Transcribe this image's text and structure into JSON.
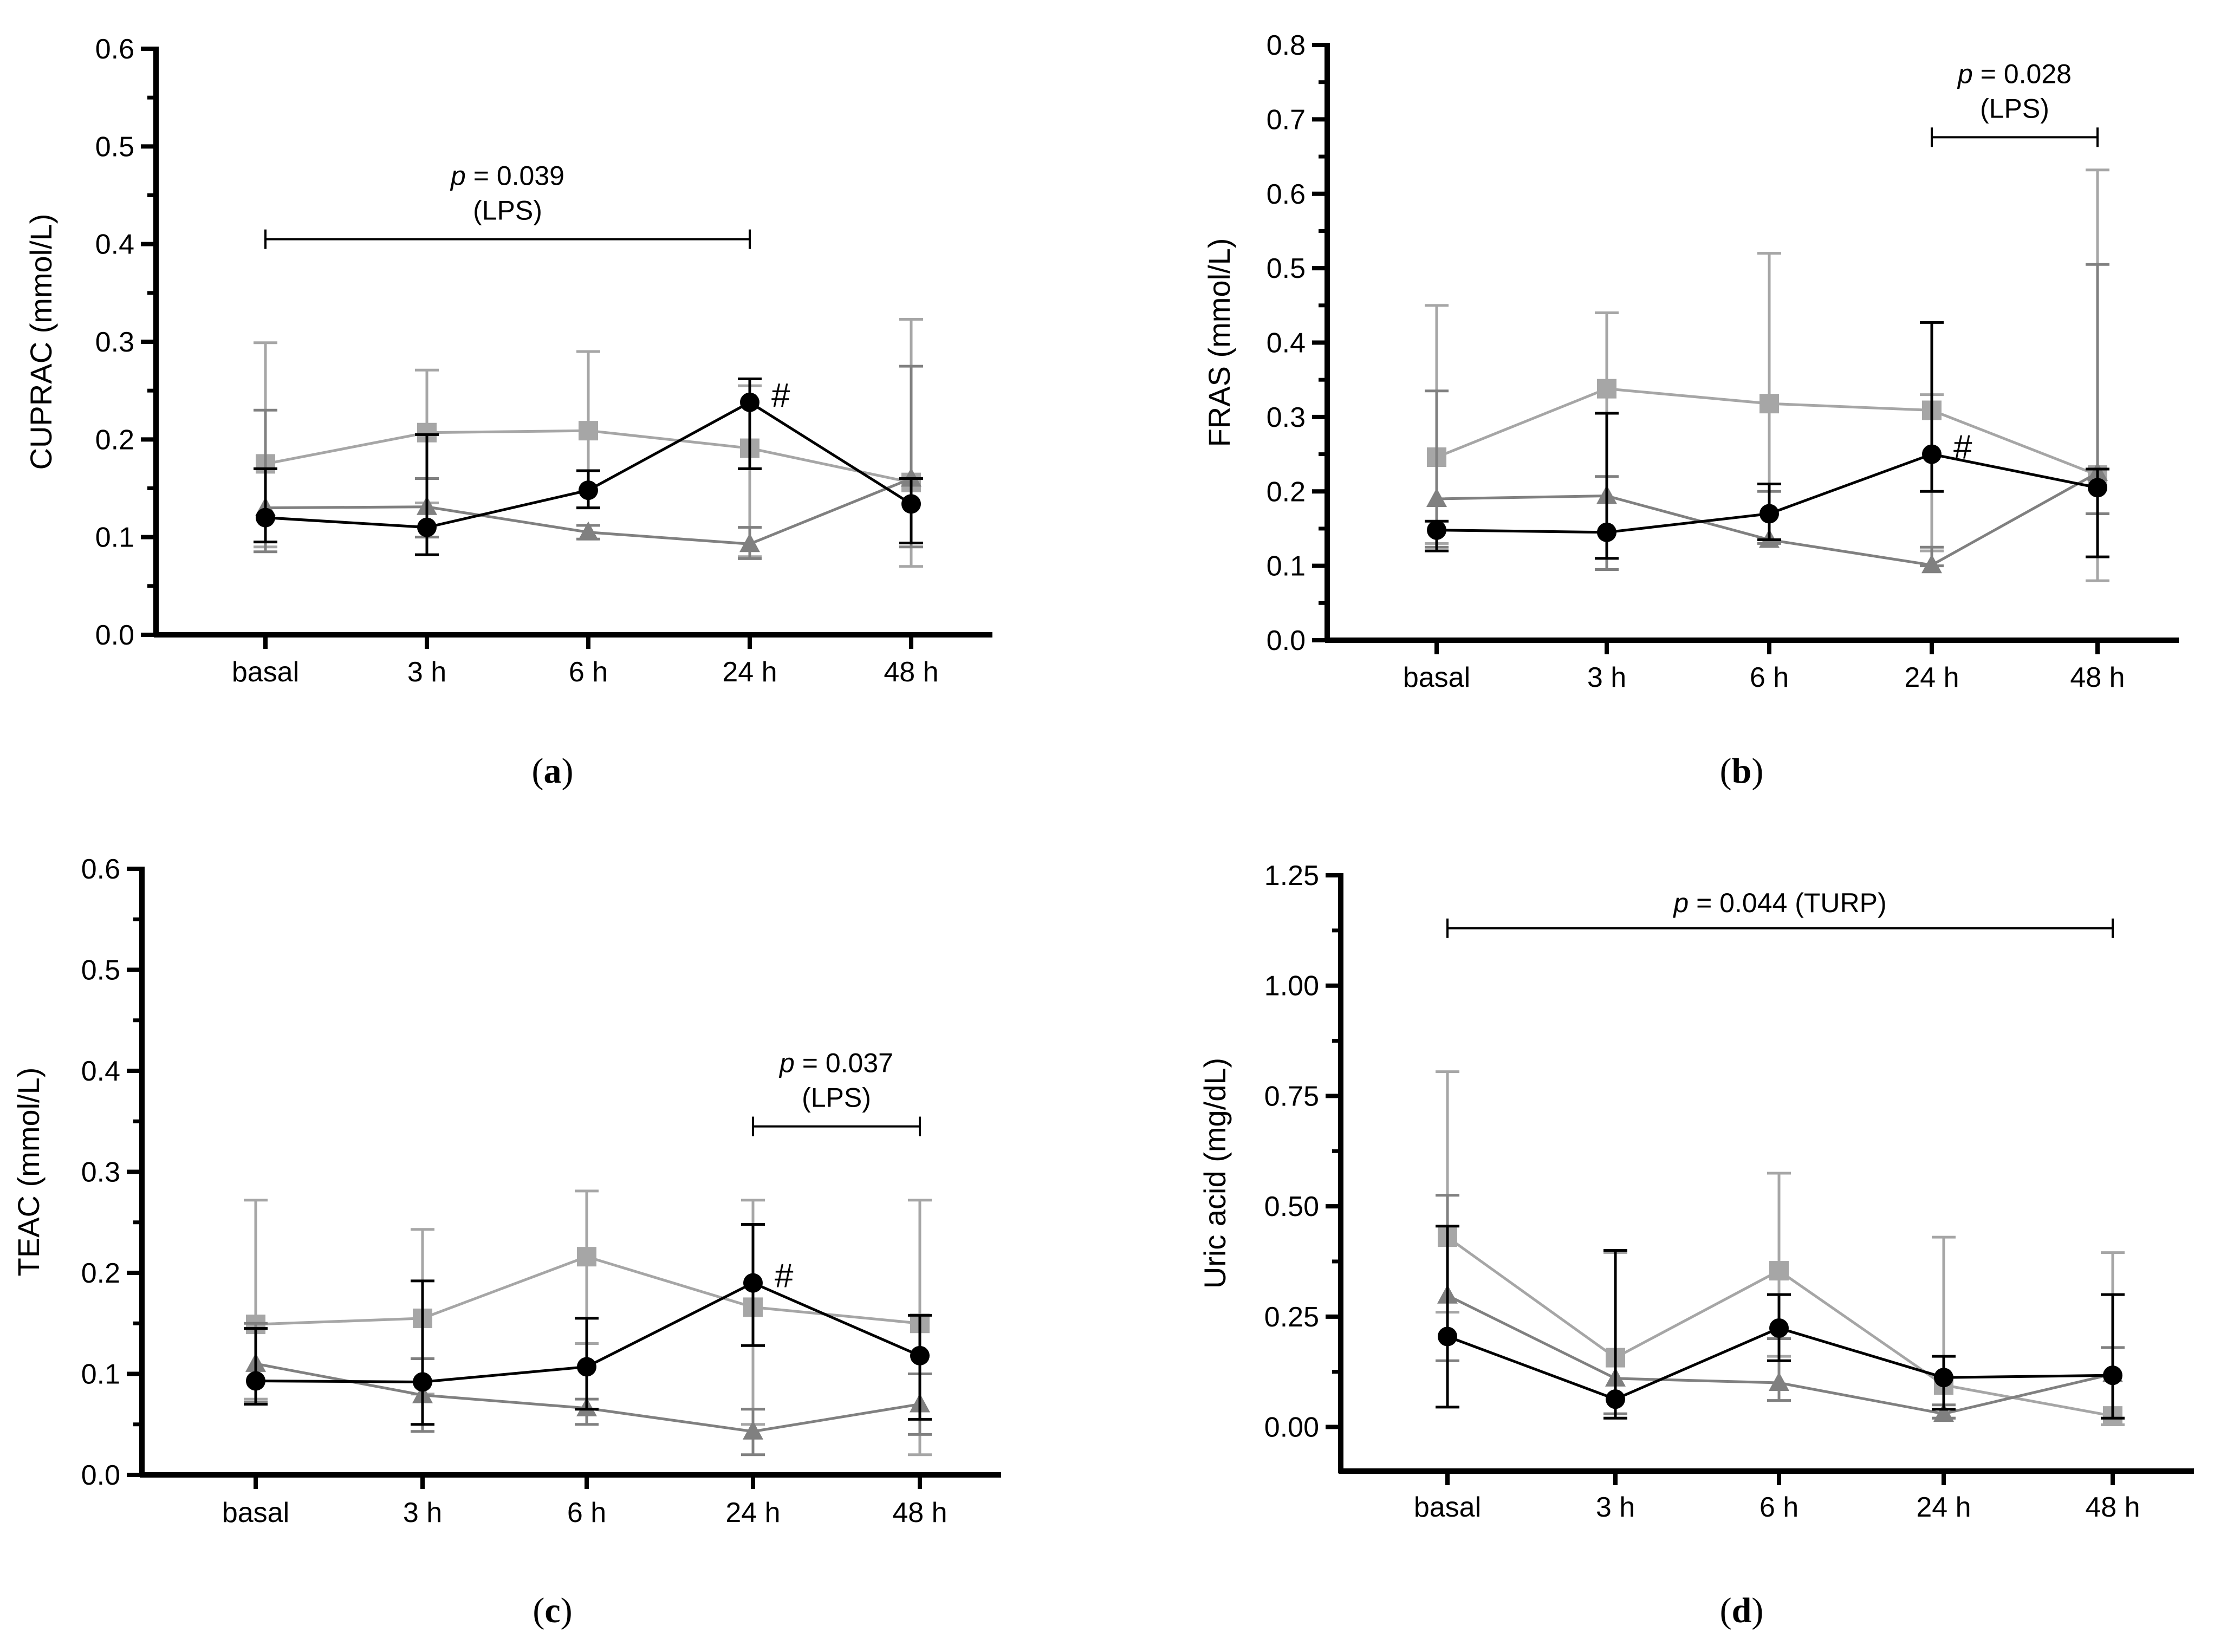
{
  "figure": {
    "panels": [
      {
        "id": "a",
        "tag": "a"
      },
      {
        "id": "b",
        "tag": "b"
      },
      {
        "id": "c",
        "tag": "c"
      },
      {
        "id": "d",
        "tag": "d"
      }
    ]
  },
  "colors": {
    "black_series": "#000000",
    "square_series": "#a6a6a6",
    "triangle_series": "#808080",
    "axis": "#000000"
  },
  "chart_data": [
    {
      "panel": "a",
      "type": "line",
      "title": "",
      "xlabel": "",
      "ylabel": "CUPRAC (mmol/L)",
      "categories": [
        "basal",
        "3 h",
        "6 h",
        "24 h",
        "48 h"
      ],
      "ylim": [
        0,
        0.6
      ],
      "yticks": [
        "0.0",
        "0.1",
        "0.2",
        "0.3",
        "0.4",
        "0.5",
        "0.6"
      ],
      "series": [
        {
          "name": "circle",
          "marker": "circle",
          "color": "#000000",
          "values": [
            0.12,
            0.11,
            0.148,
            0.238,
            0.134
          ],
          "err_low": [
            0.095,
            0.082,
            0.13,
            0.17,
            0.094
          ],
          "err_high": [
            0.17,
            0.205,
            0.168,
            0.262,
            0.16
          ]
        },
        {
          "name": "square",
          "marker": "square",
          "color": "#a6a6a6",
          "values": [
            0.175,
            0.207,
            0.209,
            0.191,
            0.156
          ],
          "err_low": [
            0.09,
            0.135,
            0.13,
            0.08,
            0.07
          ],
          "err_high": [
            0.299,
            0.271,
            0.29,
            0.255,
            0.323
          ]
        },
        {
          "name": "triangle",
          "marker": "triangle",
          "color": "#808080",
          "values": [
            0.13,
            0.131,
            0.105,
            0.093,
            0.16
          ],
          "err_low": [
            0.085,
            0.1,
            0.098,
            0.078,
            0.09
          ],
          "err_high": [
            0.23,
            0.16,
            0.112,
            0.11,
            0.275
          ]
        }
      ],
      "significance": [
        {
          "from": "basal",
          "to": "24 h",
          "y": 0.405,
          "text": "= 0.039",
          "p": "p",
          "sub": "(LPS)"
        }
      ],
      "marks": [
        {
          "category": "24 h",
          "value": 0.238,
          "text": "#"
        }
      ]
    },
    {
      "panel": "b",
      "type": "line",
      "title": "",
      "xlabel": "",
      "ylabel": "FRAS (mmol/L)",
      "categories": [
        "basal",
        "3 h",
        "6 h",
        "24 h",
        "48 h"
      ],
      "ylim": [
        0,
        0.8
      ],
      "yticks": [
        "0.0",
        "0.1",
        "0.2",
        "0.3",
        "0.4",
        "0.5",
        "0.6",
        "0.7",
        "0.8"
      ],
      "series": [
        {
          "name": "circle",
          "marker": "circle",
          "color": "#000000",
          "values": [
            0.148,
            0.145,
            0.17,
            0.25,
            0.205
          ],
          "err_low": [
            0.12,
            0.11,
            0.135,
            0.2,
            0.112
          ],
          "err_high": [
            0.16,
            0.305,
            0.21,
            0.427,
            0.23
          ]
        },
        {
          "name": "square",
          "marker": "square",
          "color": "#a6a6a6",
          "values": [
            0.246,
            0.338,
            0.318,
            0.309,
            0.222
          ],
          "err_low": [
            0.13,
            0.11,
            0.135,
            0.12,
            0.08
          ],
          "err_high": [
            0.45,
            0.44,
            0.52,
            0.33,
            0.632
          ]
        },
        {
          "name": "triangle",
          "marker": "triangle",
          "color": "#808080",
          "values": [
            0.19,
            0.194,
            0.135,
            0.101,
            0.225
          ],
          "err_low": [
            0.125,
            0.095,
            0.13,
            0.1,
            0.17
          ],
          "err_high": [
            0.335,
            0.22,
            0.2,
            0.125,
            0.505
          ]
        }
      ],
      "significance": [
        {
          "from": "24 h",
          "to": "48 h",
          "y": 0.676,
          "text": "= 0.028",
          "p": "p",
          "sub": "(LPS)"
        }
      ],
      "marks": [
        {
          "category": "24 h",
          "value": 0.25,
          "text": "#"
        }
      ]
    },
    {
      "panel": "c",
      "type": "line",
      "title": "",
      "xlabel": "",
      "ylabel": "TEAC (mmol/L)",
      "categories": [
        "basal",
        "3 h",
        "6 h",
        "24 h",
        "48 h"
      ],
      "ylim": [
        0,
        0.6
      ],
      "yticks": [
        "0.0",
        "0.1",
        "0.2",
        "0.3",
        "0.4",
        "0.5",
        "0.6"
      ],
      "series": [
        {
          "name": "circle",
          "marker": "circle",
          "color": "#000000",
          "values": [
            0.093,
            0.092,
            0.107,
            0.19,
            0.118
          ],
          "err_low": [
            0.07,
            0.05,
            0.065,
            0.128,
            0.055
          ],
          "err_high": [
            0.145,
            0.192,
            0.155,
            0.248,
            0.158
          ]
        },
        {
          "name": "square",
          "marker": "square",
          "color": "#a6a6a6",
          "values": [
            0.149,
            0.155,
            0.216,
            0.166,
            0.15
          ],
          "err_low": [
            0.075,
            0.08,
            0.13,
            0.05,
            0.02
          ],
          "err_high": [
            0.272,
            0.243,
            0.281,
            0.272,
            0.272
          ]
        },
        {
          "name": "triangle",
          "marker": "triangle",
          "color": "#808080",
          "values": [
            0.11,
            0.079,
            0.066,
            0.043,
            0.07
          ],
          "err_low": [
            0.072,
            0.043,
            0.05,
            0.02,
            0.04
          ],
          "err_high": [
            0.15,
            0.115,
            0.075,
            0.065,
            0.1
          ]
        }
      ],
      "significance": [
        {
          "from": "24 h",
          "to": "48 h",
          "y": 0.345,
          "text": "= 0.037",
          "p": "p",
          "sub": "(LPS)"
        }
      ],
      "marks": [
        {
          "category": "24 h",
          "value": 0.19,
          "text": "#"
        }
      ]
    },
    {
      "panel": "d",
      "type": "line",
      "title": "",
      "xlabel": "",
      "ylabel": "Uric acid (mg/dL)",
      "categories": [
        "basal",
        "3 h",
        "6 h",
        "24 h",
        "48 h"
      ],
      "ylim": [
        -0.1,
        1.25
      ],
      "yticks": [
        "0.00",
        "0.25",
        "0.50",
        "0.75",
        "1.00",
        "1.25"
      ],
      "series": [
        {
          "name": "circle",
          "marker": "circle",
          "color": "#000000",
          "values": [
            0.205,
            0.063,
            0.224,
            0.112,
            0.117
          ],
          "err_low": [
            0.045,
            0.02,
            0.15,
            0.04,
            0.02
          ],
          "err_high": [
            0.455,
            0.4,
            0.3,
            0.16,
            0.3
          ]
        },
        {
          "name": "square",
          "marker": "square",
          "color": "#a6a6a6",
          "values": [
            0.43,
            0.157,
            0.354,
            0.095,
            0.025
          ],
          "err_low": [
            0.26,
            0.02,
            0.16,
            0.02,
            0.005
          ],
          "err_high": [
            0.805,
            0.395,
            0.575,
            0.43,
            0.395
          ]
        },
        {
          "name": "triangle",
          "marker": "triangle",
          "color": "#808080",
          "values": [
            0.298,
            0.11,
            0.1,
            0.03,
            0.12
          ],
          "err_low": [
            0.15,
            0.03,
            0.06,
            0.02,
            0.02
          ],
          "err_high": [
            0.525,
            0.4,
            0.2,
            0.05,
            0.18
          ]
        }
      ],
      "significance": [
        {
          "from": "basal",
          "to": "48 h",
          "y": 1.13,
          "text": "= 0.044 (TURP)",
          "p": "p",
          "sub": ""
        }
      ],
      "marks": []
    }
  ]
}
